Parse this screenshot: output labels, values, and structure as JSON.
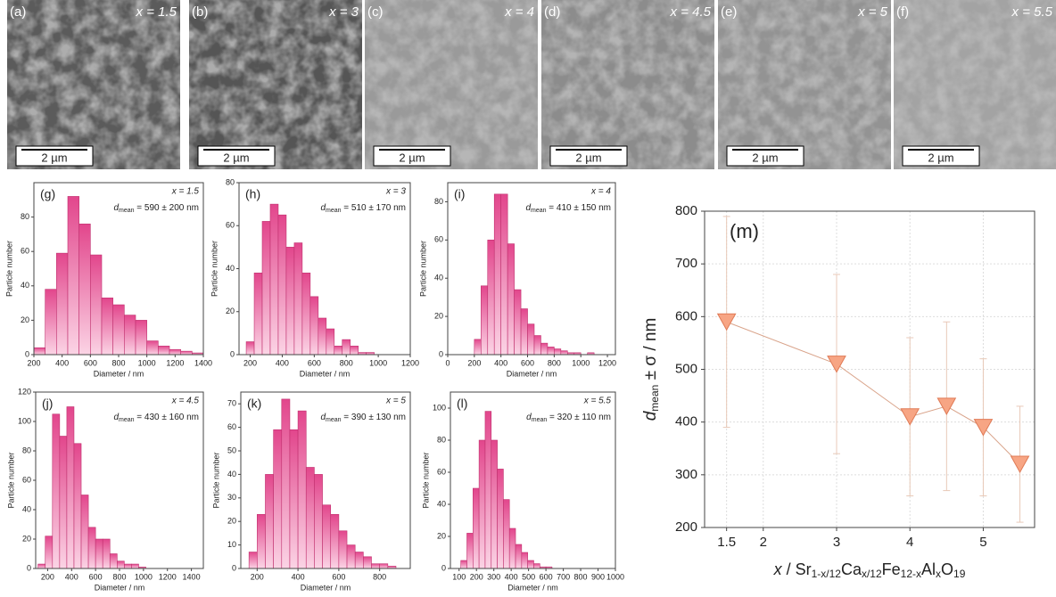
{
  "images": [
    {
      "label": "(a)",
      "composition": "x = 1.5",
      "scale_bar": "2 µm"
    },
    {
      "label": "(b)",
      "composition": "x = 3",
      "scale_bar": "2 µm"
    },
    {
      "label": "(c)",
      "composition": "x = 4",
      "scale_bar": "2 µm"
    },
    {
      "label": "(d)",
      "composition": "x = 4.5",
      "scale_bar": "2 µm"
    },
    {
      "label": "(e)",
      "composition": "x = 5",
      "scale_bar": "2 µm"
    },
    {
      "label": "(f)",
      "composition": "x = 5.5",
      "scale_bar": "2 µm"
    }
  ],
  "chart_data": [
    {
      "type": "histogram",
      "label": "(g)",
      "annotation": "x = 1.5",
      "d_mean": {
        "symbol": "d",
        "subscript": "mean",
        "text": " = 590 ± 200 nm"
      },
      "xlabel": "Diameter / nm",
      "ylabel": "Particle number",
      "color": "#f08cb8",
      "bins": [
        200,
        280,
        360,
        440,
        520,
        600,
        680,
        760,
        840,
        920,
        1000,
        1080,
        1160,
        1240,
        1320,
        1400
      ],
      "counts": [
        4,
        38,
        59,
        92,
        76,
        58,
        33,
        29,
        23,
        20,
        8,
        5,
        3,
        2,
        1
      ],
      "xlim": [
        200,
        1400
      ],
      "ylim": [
        0,
        100
      ],
      "xticks": [
        200,
        400,
        600,
        800,
        1000,
        1200,
        1400
      ],
      "yticks": [
        0,
        20,
        40,
        60,
        80
      ]
    },
    {
      "type": "histogram",
      "label": "(h)",
      "annotation": "x = 3",
      "d_mean": {
        "symbol": "d",
        "subscript": "mean",
        "text": " = 510 ± 170 nm"
      },
      "xlabel": "Diameter / nm",
      "ylabel": "Particle number",
      "color": "#f08cb8",
      "bins": [
        175,
        225,
        275,
        325,
        375,
        425,
        475,
        525,
        575,
        625,
        675,
        725,
        775,
        825,
        875,
        925,
        975
      ],
      "counts": [
        6,
        38,
        62,
        70,
        65,
        50,
        52,
        38,
        27,
        17,
        12,
        4,
        7,
        4,
        1,
        1
      ],
      "xlim": [
        130,
        1200
      ],
      "ylim": [
        0,
        80
      ],
      "xticks": [
        200,
        400,
        600,
        800,
        1000,
        1200
      ],
      "yticks": [
        0,
        20,
        40,
        60,
        80
      ]
    },
    {
      "type": "histogram",
      "label": "(i)",
      "annotation": "x = 4",
      "d_mean": {
        "symbol": "d",
        "subscript": "mean",
        "text": " = 410 ± 150 nm"
      },
      "xlabel": "Diameter / nm",
      "ylabel": "Particle number",
      "color": "#f08cb8",
      "bins": [
        200,
        250,
        300,
        350,
        400,
        450,
        500,
        550,
        600,
        650,
        700,
        750,
        800,
        850,
        900,
        950,
        1000,
        1050,
        1100
      ],
      "counts": [
        8,
        36,
        60,
        84,
        84,
        58,
        34,
        24,
        16,
        10,
        6,
        4,
        3,
        2,
        1,
        1,
        0,
        1
      ],
      "xlim": [
        0,
        1260
      ],
      "ylim": [
        0,
        90
      ],
      "xticks": [
        0,
        200,
        400,
        600,
        800,
        1000,
        1200
      ],
      "yticks": [
        0,
        20,
        40,
        60,
        80
      ]
    },
    {
      "type": "histogram",
      "label": "(j)",
      "annotation": "x = 4.5",
      "d_mean": {
        "symbol": "d",
        "subscript": "mean",
        "text": " = 430 ± 160 nm"
      },
      "xlabel": "Diameter / nm",
      "ylabel": "Particle number",
      "color": "#f08cb8",
      "bins": [
        120,
        180,
        240,
        300,
        360,
        420,
        480,
        540,
        600,
        660,
        720,
        780,
        840,
        900,
        960,
        1020
      ],
      "counts": [
        3,
        22,
        105,
        90,
        110,
        85,
        50,
        28,
        20,
        20,
        10,
        5,
        3,
        3,
        1
      ],
      "xlim": [
        100,
        1500
      ],
      "ylim": [
        0,
        120
      ],
      "xticks": [
        200,
        400,
        600,
        800,
        1000,
        1200,
        1400
      ],
      "yticks": [
        0,
        20,
        40,
        60,
        80,
        100,
        120
      ]
    },
    {
      "type": "histogram",
      "label": "(k)",
      "annotation": "x = 5",
      "d_mean": {
        "symbol": "d",
        "subscript": "mean",
        "text": " = 390 ± 130 nm"
      },
      "xlabel": "Diameter / nm",
      "ylabel": "Particle number",
      "color": "#f08cb8",
      "bins": [
        160,
        200,
        240,
        280,
        320,
        360,
        400,
        440,
        480,
        520,
        560,
        600,
        640,
        680,
        720,
        760,
        800,
        840,
        880
      ],
      "counts": [
        7,
        23,
        40,
        59,
        72,
        59,
        67,
        43,
        40,
        27,
        23,
        16,
        10,
        7,
        5,
        2,
        2,
        1
      ],
      "xlim": [
        120,
        950
      ],
      "ylim": [
        0,
        75
      ],
      "xticks": [
        200,
        400,
        600,
        800
      ],
      "yticks": [
        0,
        10,
        20,
        30,
        40,
        50,
        60,
        70
      ]
    },
    {
      "type": "histogram",
      "label": "(l)",
      "annotation": "x = 5.5",
      "d_mean": {
        "symbol": "d",
        "subscript": "mean",
        "text": " = 320 ± 110 nm"
      },
      "xlabel": "Diameter / nm",
      "ylabel": "Particle number",
      "color": "#f08cb8",
      "bins": [
        110,
        145,
        180,
        215,
        250,
        285,
        320,
        355,
        390,
        425,
        460,
        495,
        530,
        565,
        600,
        635
      ],
      "counts": [
        5,
        22,
        50,
        80,
        98,
        80,
        62,
        43,
        25,
        15,
        10,
        5,
        3,
        1,
        1
      ],
      "xlim": [
        50,
        1000
      ],
      "ylim": [
        0,
        110
      ],
      "xticks": [
        100,
        200,
        300,
        400,
        500,
        600,
        700,
        800,
        900,
        1000
      ],
      "yticks": [
        0,
        20,
        40,
        60,
        80,
        100
      ]
    },
    {
      "type": "scatter",
      "label": "(m)",
      "color": "#f7a584",
      "x": [
        1.5,
        3,
        4,
        4.5,
        5,
        5.5
      ],
      "values": [
        590,
        510,
        410,
        430,
        390,
        320
      ],
      "errors": [
        200,
        170,
        150,
        160,
        130,
        110
      ],
      "xlim": [
        1.2,
        5.7
      ],
      "ylim": [
        200,
        800
      ],
      "xticks": [
        1.5,
        2,
        3,
        4,
        5
      ],
      "yticks": [
        200,
        300,
        400,
        500,
        600,
        700,
        800
      ],
      "grid": true,
      "ylabel": [
        {
          "text": "d",
          "style": "italic"
        },
        {
          "text": "mean",
          "style": "sub"
        },
        {
          "text": " ± σ / nm",
          "style": "normal"
        }
      ],
      "xlabel": [
        {
          "text": "x",
          "style": "italic"
        },
        {
          "text": " / Sr",
          "style": "normal"
        },
        {
          "text": "1-x/12",
          "style": "sub"
        },
        {
          "text": "Ca",
          "style": "normal"
        },
        {
          "text": "x/12",
          "style": "sub"
        },
        {
          "text": "Fe",
          "style": "normal"
        },
        {
          "text": "12-x",
          "style": "sub"
        },
        {
          "text": "Al",
          "style": "normal"
        },
        {
          "text": "x",
          "style": "sub"
        },
        {
          "text": "O",
          "style": "normal"
        },
        {
          "text": "19",
          "style": "sub"
        }
      ]
    }
  ]
}
